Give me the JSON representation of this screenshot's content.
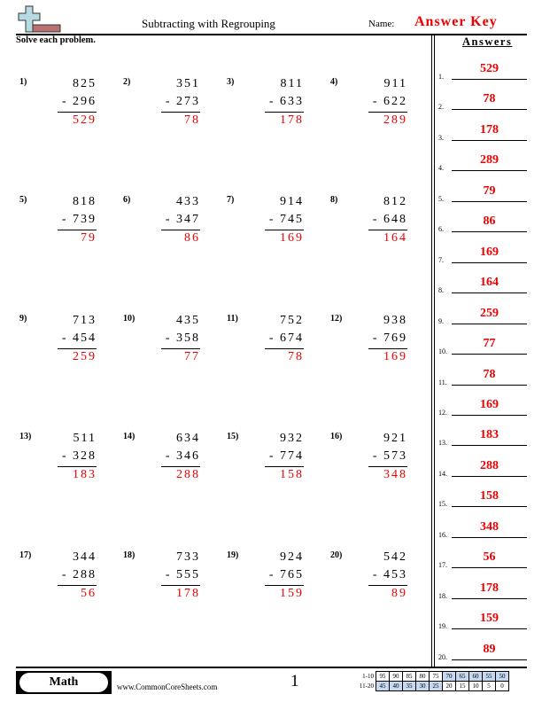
{
  "header": {
    "title": "Subtracting with Regrouping",
    "name_label": "Name:",
    "name_value": "Answer Key",
    "logo_icon": "plus-minus-logo-icon"
  },
  "instructions": "Solve each problem.",
  "problems": [
    {
      "label": "1)",
      "top": "825",
      "bottom": "- 296",
      "answer": "529"
    },
    {
      "label": "2)",
      "top": "351",
      "bottom": "- 273",
      "answer": "78"
    },
    {
      "label": "3)",
      "top": "811",
      "bottom": "- 633",
      "answer": "178"
    },
    {
      "label": "4)",
      "top": "911",
      "bottom": "- 622",
      "answer": "289"
    },
    {
      "label": "5)",
      "top": "818",
      "bottom": "- 739",
      "answer": "79"
    },
    {
      "label": "6)",
      "top": "433",
      "bottom": "- 347",
      "answer": "86"
    },
    {
      "label": "7)",
      "top": "914",
      "bottom": "- 745",
      "answer": "169"
    },
    {
      "label": "8)",
      "top": "812",
      "bottom": "- 648",
      "answer": "164"
    },
    {
      "label": "9)",
      "top": "713",
      "bottom": "- 454",
      "answer": "259"
    },
    {
      "label": "10)",
      "top": "435",
      "bottom": "- 358",
      "answer": "77"
    },
    {
      "label": "11)",
      "top": "752",
      "bottom": "- 674",
      "answer": "78"
    },
    {
      "label": "12)",
      "top": "938",
      "bottom": "- 769",
      "answer": "169"
    },
    {
      "label": "13)",
      "top": "511",
      "bottom": "- 328",
      "answer": "183"
    },
    {
      "label": "14)",
      "top": "634",
      "bottom": "- 346",
      "answer": "288"
    },
    {
      "label": "15)",
      "top": "932",
      "bottom": "- 774",
      "answer": "158"
    },
    {
      "label": "16)",
      "top": "921",
      "bottom": "- 573",
      "answer": "348"
    },
    {
      "label": "17)",
      "top": "344",
      "bottom": "- 288",
      "answer": "56"
    },
    {
      "label": "18)",
      "top": "733",
      "bottom": "- 555",
      "answer": "178"
    },
    {
      "label": "19)",
      "top": "924",
      "bottom": "- 765",
      "answer": "159"
    },
    {
      "label": "20)",
      "top": "542",
      "bottom": "- 453",
      "answer": "89"
    }
  ],
  "answer_key": {
    "title": "Answers",
    "items": [
      {
        "n": "1.",
        "v": "529"
      },
      {
        "n": "2.",
        "v": "78"
      },
      {
        "n": "3.",
        "v": "178"
      },
      {
        "n": "4.",
        "v": "289"
      },
      {
        "n": "5.",
        "v": "79"
      },
      {
        "n": "6.",
        "v": "86"
      },
      {
        "n": "7.",
        "v": "169"
      },
      {
        "n": "8.",
        "v": "164"
      },
      {
        "n": "9.",
        "v": "259"
      },
      {
        "n": "10.",
        "v": "77"
      },
      {
        "n": "11.",
        "v": "78"
      },
      {
        "n": "12.",
        "v": "169"
      },
      {
        "n": "13.",
        "v": "183"
      },
      {
        "n": "14.",
        "v": "288"
      },
      {
        "n": "15.",
        "v": "158"
      },
      {
        "n": "16.",
        "v": "348"
      },
      {
        "n": "17.",
        "v": "56"
      },
      {
        "n": "18.",
        "v": "178"
      },
      {
        "n": "19.",
        "v": "159"
      },
      {
        "n": "20.",
        "v": "89"
      }
    ]
  },
  "footer": {
    "subject": "Math",
    "website": "www.CommonCoreSheets.com",
    "page": "1",
    "score_rows": [
      {
        "label": "1-10",
        "values": [
          "95",
          "90",
          "85",
          "80",
          "75",
          "70",
          "65",
          "60",
          "55",
          "50"
        ],
        "highlighted": [
          false,
          false,
          false,
          false,
          false,
          true,
          true,
          true,
          true,
          true
        ]
      },
      {
        "label": "11-20",
        "values": [
          "45",
          "40",
          "35",
          "30",
          "25",
          "20",
          "15",
          "10",
          "5",
          "0"
        ],
        "highlighted": [
          true,
          true,
          true,
          true,
          true,
          false,
          false,
          false,
          false,
          false
        ]
      }
    ],
    "highlight_color": "#c6d9f1"
  },
  "colors": {
    "answer": "#ee0000"
  }
}
